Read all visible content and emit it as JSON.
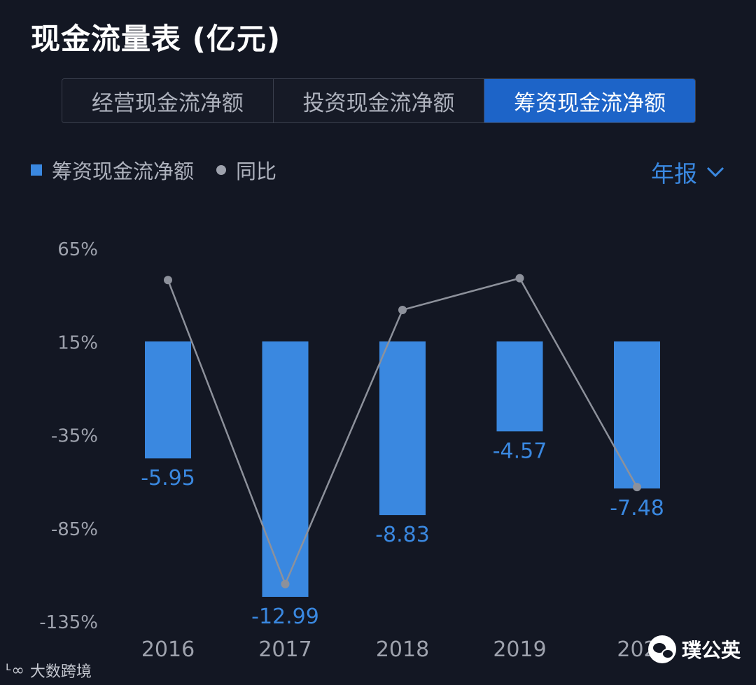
{
  "title": "现金流量表 (亿元)",
  "tabs": [
    {
      "label": "经营现金流净额",
      "active": false
    },
    {
      "label": "投资现金流净额",
      "active": false
    },
    {
      "label": "筹资现金流净额",
      "active": true
    }
  ],
  "legend": {
    "bar_label": "筹资现金流净额",
    "line_label": "同比"
  },
  "period_selector": {
    "label": "年报"
  },
  "watermarks": {
    "left_brand": "大数跨境",
    "right_brand": "璞公英"
  },
  "colors": {
    "background": "#131723",
    "bar": "#3a88e0",
    "bar_label": "#3a88e0",
    "line": "#8d919b",
    "axis_text": "#9ea2ad",
    "active_tab": "#1d64c8"
  },
  "chart_data": {
    "type": "bar",
    "categories": [
      "2016",
      "2017",
      "2018",
      "2019",
      "202"
    ],
    "series": [
      {
        "name": "筹资现金流净额",
        "type": "bar",
        "values": [
          -5.95,
          -12.99,
          -8.83,
          -4.57,
          -7.48
        ],
        "value_labels": [
          "-5.95",
          "-12.99",
          "-8.83",
          "-4.57",
          "-7.48"
        ]
      },
      {
        "name": "同比",
        "type": "line",
        "values": [
          48,
          -115,
          32,
          49,
          -63
        ]
      }
    ],
    "y_axis_ticks": [
      "65%",
      "15%",
      "-35%",
      "-85%",
      "-135%"
    ],
    "y_axis_tick_values": [
      65,
      15,
      -35,
      -85,
      -135
    ],
    "ylim": [
      -135,
      65
    ],
    "bar_scale_max": -12.99,
    "grid": false
  }
}
